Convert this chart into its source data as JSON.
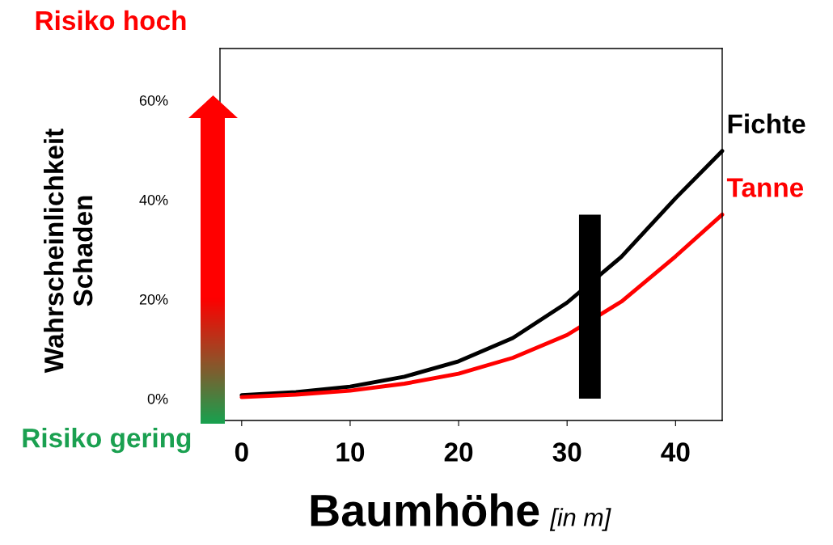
{
  "chart_data": {
    "type": "line",
    "xlabel": "Baumhöhe [in m]",
    "ylabel": "Wahrscheinlichkeit\nSchaden",
    "xlim": [
      -2,
      44.3
    ],
    "xticks": [
      0,
      10,
      20,
      30,
      40
    ],
    "ylim": [
      -4.4,
      70.4
    ],
    "yticks": [
      {
        "value": 0,
        "label": "0%"
      },
      {
        "value": 20,
        "label": "20%"
      },
      {
        "value": 40,
        "label": "40%"
      },
      {
        "value": 60,
        "label": "60%"
      }
    ],
    "series": [
      {
        "name": "Fichte",
        "color": "#000000",
        "x": [
          0,
          5,
          10,
          15,
          20,
          25,
          30,
          35,
          40,
          44.3
        ],
        "values": [
          0.7,
          1.3,
          2.4,
          4.4,
          7.5,
          12.2,
          19.3,
          28.5,
          40.3,
          49.8
        ]
      },
      {
        "name": "Tanne",
        "color": "#ff0000",
        "x": [
          0,
          5,
          10,
          15,
          20,
          25,
          30,
          35,
          40,
          44.3
        ],
        "values": [
          0.3,
          0.8,
          1.6,
          3.0,
          5.0,
          8.2,
          12.8,
          19.5,
          28.6,
          37.0
        ]
      },
      {
        "type": "bar",
        "color": "#000000",
        "x": [
          32.1
        ],
        "values": [
          37
        ]
      }
    ],
    "annotations": [
      "Risiko hoch",
      "Risiko gering"
    ],
    "grid": false
  }
}
